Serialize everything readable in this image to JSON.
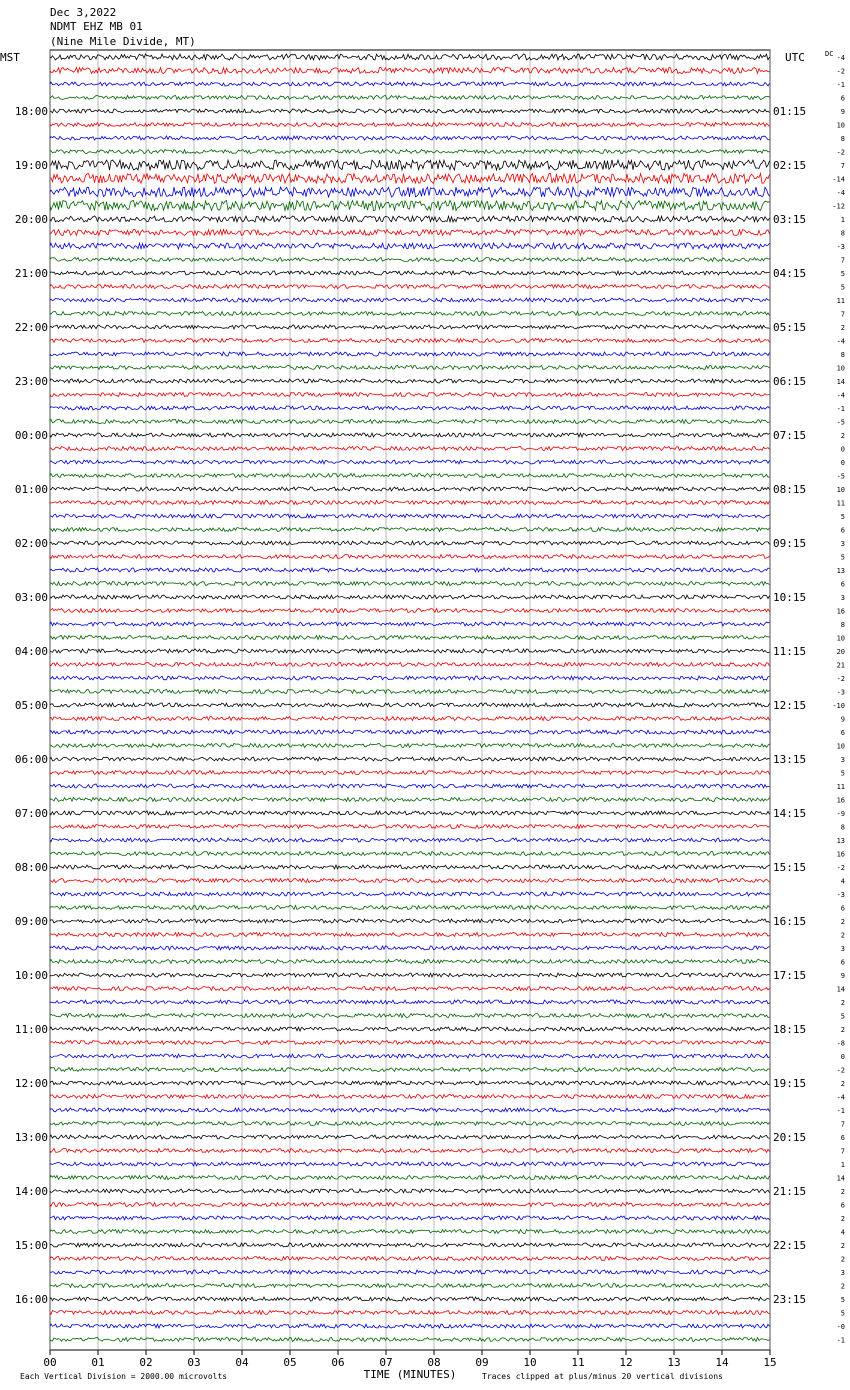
{
  "header": {
    "date": "Dec 3,2022",
    "station": "NDMT EHZ MB 01",
    "location": "(Nine Mile Divide, MT)"
  },
  "left_zone": "MST",
  "right_zone": "UTC",
  "dc_label": "DC",
  "left_times": [
    "18:00",
    "19:00",
    "20:00",
    "21:00",
    "22:00",
    "23:00",
    "00:00",
    "01:00",
    "02:00",
    "03:00",
    "04:00",
    "05:00",
    "06:00",
    "07:00",
    "08:00",
    "09:00",
    "10:00",
    "11:00",
    "12:00",
    "13:00",
    "14:00",
    "15:00",
    "16:00"
  ],
  "right_times": [
    "01:15",
    "02:15",
    "03:15",
    "04:15",
    "05:15",
    "06:15",
    "07:15",
    "08:15",
    "09:15",
    "10:15",
    "11:15",
    "12:15",
    "13:15",
    "14:15",
    "15:15",
    "16:15",
    "17:15",
    "18:15",
    "19:15",
    "20:15",
    "21:15",
    "22:15",
    "23:15"
  ],
  "dc_offsets": [
    -4,
    -2,
    -1,
    6,
    9,
    10,
    8,
    -2,
    7,
    -14,
    -4,
    -12,
    1,
    8,
    -3,
    7,
    5,
    5,
    11,
    7,
    2,
    -4,
    8,
    10,
    14,
    -4,
    -1,
    -5,
    2,
    0,
    0,
    -5,
    10,
    11,
    5,
    6,
    3,
    5,
    13,
    6,
    3,
    16,
    8,
    10,
    20,
    21,
    -2,
    -3,
    -10,
    9,
    6,
    10,
    3,
    5,
    11,
    16,
    -9,
    8,
    13,
    16,
    -2,
    4,
    -3,
    6,
    2,
    2,
    3,
    6,
    9,
    14,
    2,
    5,
    2,
    -8,
    0,
    -2,
    2,
    -4,
    -1,
    7,
    6,
    7,
    1,
    14,
    2,
    6,
    2,
    4,
    2,
    2,
    3,
    2,
    5,
    5,
    "-0",
    -1
  ],
  "x_ticks": [
    "00",
    "01",
    "02",
    "03",
    "04",
    "05",
    "06",
    "07",
    "08",
    "09",
    "10",
    "11",
    "12",
    "13",
    "14",
    "15"
  ],
  "x_title": "TIME (MINUTES)",
  "footer": {
    "left": "Each Vertical Division = 2000.00 microvolts",
    "right": "Traces clipped at plus/minus 20 vertical divisions"
  }
}
